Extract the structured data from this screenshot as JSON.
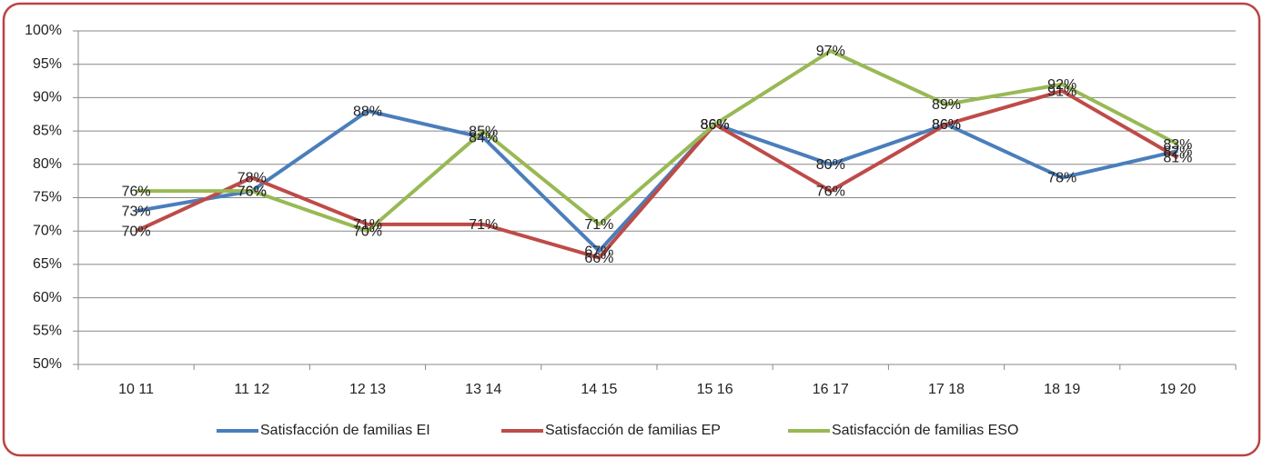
{
  "chart_data": {
    "type": "line",
    "categories": [
      "10 11",
      "11 12",
      "12 13",
      "13 14",
      "14 15",
      "15 16",
      "16 17",
      "17 18",
      "18 19",
      "19 20"
    ],
    "series": [
      {
        "name": "Satisfacción de familias EI",
        "color": "#4a7ebb",
        "values": [
          73,
          76,
          88,
          84,
          67,
          86,
          80,
          86,
          78,
          82
        ],
        "value_labels": [
          "73%",
          "76%",
          "88%",
          "84%",
          "67%",
          "86%",
          "80%",
          "86%",
          "78%",
          "82%"
        ]
      },
      {
        "name": "Satisfacción de familias EP",
        "color": "#be4b48",
        "values": [
          70,
          78,
          71,
          71,
          66,
          86,
          76,
          86,
          91,
          81
        ],
        "value_labels": [
          "70%",
          "78%",
          "71%",
          "71%",
          "66%",
          "86%",
          "76%",
          "86%",
          "91%",
          "81%"
        ]
      },
      {
        "name": "Satisfacción de familias ESO",
        "color": "#98b954",
        "values": [
          76,
          76,
          70,
          85,
          71,
          86,
          97,
          89,
          92,
          83
        ],
        "value_labels": [
          "76%",
          "76%",
          "70%",
          "85%",
          "71%",
          "86%",
          "97%",
          "89%",
          "92%",
          "83%"
        ]
      }
    ],
    "ylim": [
      50,
      100
    ],
    "yticks": [
      {
        "value": 50,
        "label": "50%"
      },
      {
        "value": 55,
        "label": "55%"
      },
      {
        "value": 60,
        "label": "60%"
      },
      {
        "value": 65,
        "label": "65%"
      },
      {
        "value": 70,
        "label": "70%"
      },
      {
        "value": 75,
        "label": "75%"
      },
      {
        "value": 80,
        "label": "80%"
      },
      {
        "value": 85,
        "label": "85%"
      },
      {
        "value": 90,
        "label": "90%"
      },
      {
        "value": 95,
        "label": "95%"
      },
      {
        "value": 100,
        "label": "100%"
      }
    ],
    "grid": true,
    "legend": "bottom"
  }
}
